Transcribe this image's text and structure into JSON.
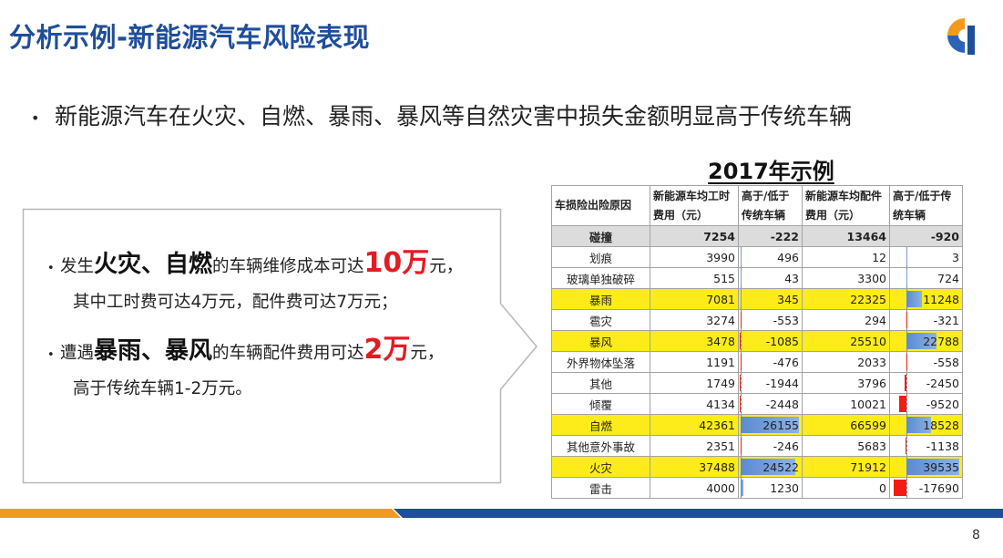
{
  "slide": {
    "title": "分析示例-新能源汽车风险表现",
    "page_number": "8"
  },
  "colors": {
    "title": "#1f4e9a",
    "accent_red": "#e31c23",
    "highlight_yellow": "#fdec19",
    "bar_blue": "#5b8bd1",
    "bar_red": "#f21b15",
    "band_orange": "#f29a1e",
    "band_blue": "#1f4e9a"
  },
  "logo": {
    "icon": "company-logo-icon"
  },
  "main_bullet": {
    "text": "新能源汽车在火灾、自燃、暴雨、暴风等自然灾害中损失金额明显高于传统车辆"
  },
  "callout": {
    "p1": {
      "pre": "发生",
      "emph": "火灾、自燃",
      "mid": "的车辆维修成本可达",
      "red": "10万",
      "post": "元，",
      "line2": "其中工时费可达4万元，配件费可达7万元；"
    },
    "p2": {
      "pre": "遭遇",
      "emph": "暴雨、暴风",
      "mid": "的车辆配件费用可达",
      "red": "2万",
      "post": "元，",
      "line2": "高于传统车辆1-2万元。"
    }
  },
  "table": {
    "title": "2017年示例",
    "headers": [
      "车损险出险原因",
      "新能源车均工时费用（元）",
      "高于/低于传统车辆",
      "新能源车均配件费用（元）",
      "高于/低于传统车辆"
    ],
    "rows": [
      {
        "cause": "碰撞",
        "labor": "7254",
        "labor_diff": "-222",
        "parts": "13464",
        "parts_diff": "-920"
      },
      {
        "cause": "划痕",
        "labor": "3990",
        "labor_diff": "496",
        "parts": "12",
        "parts_diff": "3"
      },
      {
        "cause": "玻璃单独破碎",
        "labor": "515",
        "labor_diff": "43",
        "parts": "3300",
        "parts_diff": "724"
      },
      {
        "cause": "暴雨",
        "labor": "7081",
        "labor_diff": "345",
        "parts": "22325",
        "parts_diff": "11248"
      },
      {
        "cause": "雹灾",
        "labor": "3274",
        "labor_diff": "-553",
        "parts": "294",
        "parts_diff": "-321"
      },
      {
        "cause": "暴风",
        "labor": "3478",
        "labor_diff": "-1085",
        "parts": "25510",
        "parts_diff": "22788"
      },
      {
        "cause": "外界物体坠落",
        "labor": "1191",
        "labor_diff": "-476",
        "parts": "2033",
        "parts_diff": "-558"
      },
      {
        "cause": "其他",
        "labor": "1749",
        "labor_diff": "-1944",
        "parts": "3796",
        "parts_diff": "-2450"
      },
      {
        "cause": "倾覆",
        "labor": "4134",
        "labor_diff": "-2448",
        "parts": "10021",
        "parts_diff": "-9520"
      },
      {
        "cause": "自燃",
        "labor": "42361",
        "labor_diff": "26155",
        "parts": "66599",
        "parts_diff": "18528"
      },
      {
        "cause": "其他意外事故",
        "labor": "2351",
        "labor_diff": "-246",
        "parts": "5683",
        "parts_diff": "-1138"
      },
      {
        "cause": "火灾",
        "labor": "37488",
        "labor_diff": "24522",
        "parts": "71912",
        "parts_diff": "39535"
      },
      {
        "cause": "雷击",
        "labor": "4000",
        "labor_diff": "1230",
        "parts": "0",
        "parts_diff": "-17690"
      }
    ]
  }
}
